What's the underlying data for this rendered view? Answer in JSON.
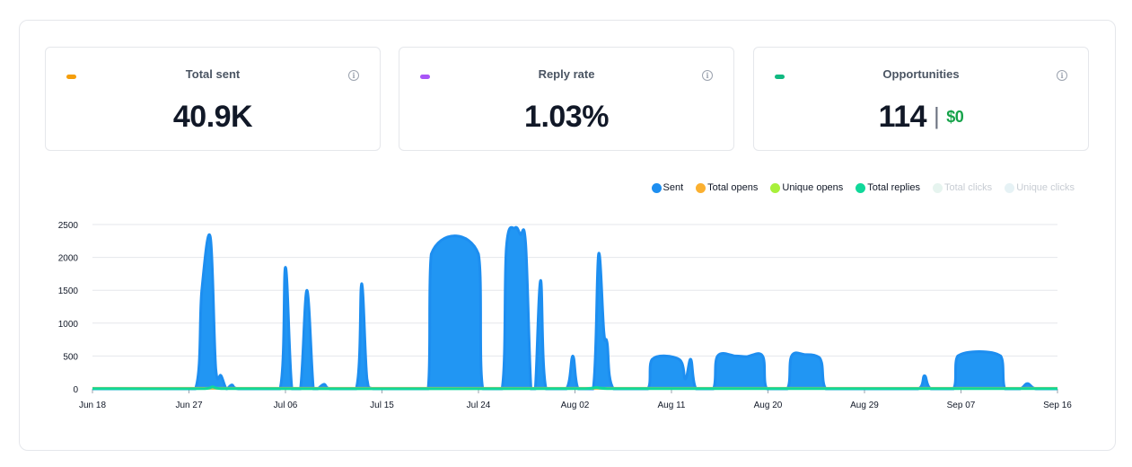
{
  "cards": [
    {
      "title": "Total sent",
      "value": "40.9K",
      "dot_color": "#f59e0b"
    },
    {
      "title": "Reply rate",
      "value": "1.03%",
      "dot_color": "#a855f7"
    },
    {
      "title": "Opportunities",
      "value": "114",
      "separator": "|",
      "money": "$0",
      "dot_color": "#10b981"
    }
  ],
  "info_icon_glyph": "i",
  "legend": [
    {
      "label": "Sent",
      "color": "#1d8ef0",
      "enabled": true
    },
    {
      "label": "Total opens",
      "color": "#fbb030",
      "enabled": true
    },
    {
      "label": "Unique opens",
      "color": "#a8f03a",
      "enabled": true
    },
    {
      "label": "Total replies",
      "color": "#10d89a",
      "enabled": true
    },
    {
      "label": "Total clicks",
      "color": "#e6f4ef",
      "enabled": false
    },
    {
      "label": "Unique clicks",
      "color": "#e6f2f5",
      "enabled": false
    }
  ],
  "chart_data": {
    "type": "area",
    "legend_position": "top-right",
    "grid": true,
    "ylim": [
      0,
      2500
    ],
    "yticks": [
      0,
      500,
      1000,
      1500,
      2000,
      2500
    ],
    "xticks": [
      {
        "day": 0,
        "label": "Jun 18"
      },
      {
        "day": 9,
        "label": "Jun 27"
      },
      {
        "day": 18,
        "label": "Jul 06"
      },
      {
        "day": 27,
        "label": "Jul 15"
      },
      {
        "day": 36,
        "label": "Jul 24"
      },
      {
        "day": 45,
        "label": "Aug 02"
      },
      {
        "day": 54,
        "label": "Aug 11"
      },
      {
        "day": 63,
        "label": "Aug 20"
      },
      {
        "day": 72,
        "label": "Aug 29"
      },
      {
        "day": 81,
        "label": "Sep 07"
      },
      {
        "day": 90,
        "label": "Sep 16"
      }
    ],
    "x_domain": [
      0,
      90
    ],
    "series": [
      {
        "name": "Sent",
        "color": "#1d8ef0",
        "fill": "#2196f3",
        "points": [
          [
            0,
            0
          ],
          [
            9.6,
            0
          ],
          [
            10.2,
            1500
          ],
          [
            11.0,
            2300
          ],
          [
            11.5,
            300
          ],
          [
            12.0,
            200
          ],
          [
            12.5,
            0
          ],
          [
            13.0,
            60
          ],
          [
            13.6,
            0
          ],
          [
            17.5,
            0
          ],
          [
            18.0,
            1850
          ],
          [
            18.6,
            0
          ],
          [
            19.4,
            0
          ],
          [
            20.0,
            1500
          ],
          [
            20.6,
            0
          ],
          [
            21.0,
            0
          ],
          [
            21.6,
            70
          ],
          [
            22.2,
            0
          ],
          [
            24.6,
            0
          ],
          [
            25.1,
            1600
          ],
          [
            25.6,
            150
          ],
          [
            26.2,
            0
          ],
          [
            31.3,
            0
          ],
          [
            31.6,
            2050
          ],
          [
            36.0,
            2050
          ],
          [
            36.4,
            0
          ],
          [
            38.2,
            0
          ],
          [
            38.6,
            2150
          ],
          [
            39.4,
            2450
          ],
          [
            39.9,
            2350
          ],
          [
            40.4,
            2200
          ],
          [
            40.9,
            0
          ],
          [
            41.3,
            0
          ],
          [
            41.8,
            1650
          ],
          [
            42.3,
            0
          ],
          [
            44.2,
            0
          ],
          [
            44.8,
            500
          ],
          [
            45.3,
            0
          ],
          [
            46.7,
            0
          ],
          [
            47.2,
            2050
          ],
          [
            47.7,
            850
          ],
          [
            48.0,
            700
          ],
          [
            48.6,
            0
          ],
          [
            51.8,
            0
          ],
          [
            52.2,
            450
          ],
          [
            54.7,
            450
          ],
          [
            55.3,
            150
          ],
          [
            55.8,
            450
          ],
          [
            56.3,
            0
          ],
          [
            57.9,
            0
          ],
          [
            58.3,
            500
          ],
          [
            60.0,
            500
          ],
          [
            61.0,
            490
          ],
          [
            62.5,
            500
          ],
          [
            62.9,
            0
          ],
          [
            64.8,
            0
          ],
          [
            65.2,
            500
          ],
          [
            66.5,
            520
          ],
          [
            67.5,
            500
          ],
          [
            68.0,
            400
          ],
          [
            68.4,
            0
          ],
          [
            77.0,
            0
          ],
          [
            77.6,
            200
          ],
          [
            78.2,
            0
          ],
          [
            80.3,
            0
          ],
          [
            80.7,
            500
          ],
          [
            84.7,
            500
          ],
          [
            85.1,
            0
          ],
          [
            86.5,
            0
          ],
          [
            87.2,
            80
          ],
          [
            88.0,
            0
          ],
          [
            90,
            0
          ]
        ]
      },
      {
        "name": "Total opens",
        "color": "#d4b64a",
        "points": [
          [
            0,
            8
          ],
          [
            90,
            8
          ]
        ]
      },
      {
        "name": "Total replies",
        "color": "#10d89a",
        "points": [
          [
            0,
            4
          ],
          [
            10.5,
            4
          ],
          [
            11.2,
            30
          ],
          [
            12.0,
            4
          ],
          [
            46.0,
            4
          ],
          [
            47.0,
            20
          ],
          [
            48.0,
            4
          ],
          [
            90,
            4
          ]
        ]
      }
    ]
  }
}
